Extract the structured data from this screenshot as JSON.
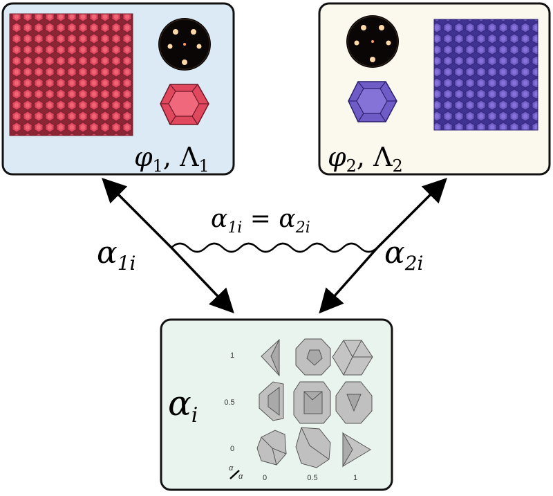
{
  "colors": {
    "left_panel_bg": "#dbeaf4",
    "right_panel_bg": "#fbf8ee",
    "bottom_panel_bg": "#eaf4ee",
    "red_particle": "#e0485e",
    "blue_particle": "#6f5cc6",
    "gray_shape": "#b9b9b9"
  },
  "left_panel": {
    "label": "φ1, Λ1",
    "label_main1": "φ",
    "label_sub1": "1",
    "label_sep": ", ",
    "label_main2": "Λ",
    "label_sub2": "1"
  },
  "right_panel": {
    "label": "φ2, Λ2",
    "label_main1": "φ",
    "label_sub1": "2",
    "label_sep": ", ",
    "label_main2": "Λ",
    "label_sub2": "2"
  },
  "left_arrow_label": {
    "main": "α",
    "sub": "1i"
  },
  "right_arrow_label": {
    "main": "α",
    "sub": "2i"
  },
  "constraint_label": {
    "left_main": "α",
    "left_sub": "1i",
    "eq": " = ",
    "right_main": "α",
    "right_sub": "2i"
  },
  "bottom_panel": {
    "label_main": "α",
    "label_sub": "i",
    "y_ticks": [
      "1",
      "0.5",
      "0"
    ],
    "x_ticks": [
      "0",
      "0.5",
      "1"
    ],
    "axis_corner_top": "α",
    "axis_corner_bottom": "α"
  }
}
